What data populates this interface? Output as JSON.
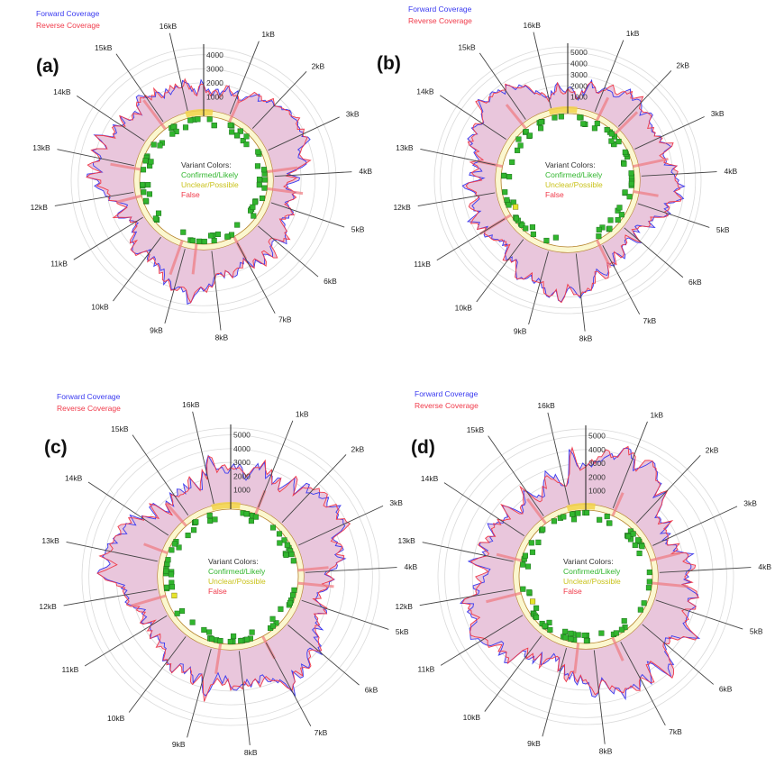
{
  "colors": {
    "forward": "#3a3af0",
    "reverse": "#f03a4a",
    "fill": "#e9c6dc",
    "ring_fill": "#fbf7cf",
    "ring_stroke": "#b5822a",
    "confirmed": "#31b62e",
    "unclear": "#e7e42c",
    "false": "#f07a80",
    "grid": "#dadada",
    "tick_line": "#444444"
  },
  "chart_data": [
    {
      "type": "circular-coverage",
      "panel_label": "(a)",
      "legend": {
        "forward": "Forward Coverage",
        "reverse": "Reverse Coverage"
      },
      "variant_legend": {
        "title": "Variant Colors:",
        "confirmed": "Confirmed/Likely",
        "unclear": "Unclear/Possible",
        "false": "False"
      },
      "position_labels": [
        "1kB",
        "2kB",
        "3kB",
        "4kB",
        "5kB",
        "6kB",
        "7kB",
        "8kB",
        "9kB",
        "10kB",
        "11kB",
        "12kB",
        "13kB",
        "14kB",
        "15kB",
        "16kB"
      ],
      "radial_ticks": [
        "1000",
        "2000",
        "3000",
        "4000"
      ],
      "rmax": 4500,
      "seed": 11,
      "unclear_variants_kb": [],
      "false_variants_kb": [
        1.1,
        3.8,
        4.5,
        7.0,
        8.6,
        9.2,
        11.8,
        12.9,
        14.9
      ]
    },
    {
      "type": "circular-coverage",
      "panel_label": "(b)",
      "legend": {
        "forward": "Forward Coverage",
        "reverse": "Reverse Coverage"
      },
      "variant_legend": {
        "title": "Variant Colors:",
        "confirmed": "Confirmed/Likely",
        "unclear": "Unclear/Possible",
        "false": "False"
      },
      "position_labels": [
        "1kB",
        "2kB",
        "3kB",
        "4kB",
        "5kB",
        "6kB",
        "7kB",
        "8kB",
        "9kB",
        "10kB",
        "11kB",
        "12kB",
        "13kB",
        "14kB",
        "15kB",
        "16kB"
      ],
      "radial_ticks": [
        "1000",
        "2000",
        "3000",
        "4000",
        "5000"
      ],
      "rmax": 5500,
      "seed": 23,
      "unclear_variants_kb": [
        11.2
      ],
      "false_variants_kb": [
        1.2,
        2.1,
        3.6,
        4.6,
        7.1,
        11.0,
        13.0,
        14.8
      ]
    },
    {
      "type": "circular-coverage",
      "panel_label": "(c)",
      "legend": {
        "forward": "Forward Coverage",
        "reverse": "Reverse Coverage"
      },
      "variant_legend": {
        "title": "Variant Colors:",
        "confirmed": "Confirmed/Likely",
        "unclear": "Unclear/Possible",
        "false": "False"
      },
      "position_labels": [
        "1kB",
        "2kB",
        "3kB",
        "4kB",
        "5kB",
        "6kB",
        "7kB",
        "8kB",
        "9kB",
        "10kB",
        "11kB",
        "12kB",
        "13kB",
        "14kB",
        "15kB",
        "16kB"
      ],
      "radial_ticks": [
        "1000",
        "2000",
        "3000",
        "4000",
        "5000"
      ],
      "rmax": 5500,
      "seed": 37,
      "unclear_variants_kb": [
        11.6
      ],
      "false_variants_kb": [
        1.0,
        3.9,
        4.4,
        7.0,
        8.7,
        11.7,
        13.4,
        14.7
      ]
    },
    {
      "type": "circular-coverage",
      "panel_label": "(d)",
      "legend": {
        "forward": "Forward Coverage",
        "reverse": "Reverse Coverage"
      },
      "variant_legend": {
        "title": "Variant Colors:",
        "confirmed": "Confirmed/Likely",
        "unclear": "Unclear/Possible",
        "false": "False"
      },
      "position_labels": [
        "1kB",
        "2kB",
        "3kB",
        "4kB",
        "5kB",
        "6kB",
        "7kB",
        "8kB",
        "9kB",
        "10kB",
        "11kB",
        "12kB",
        "13kB",
        "14kB",
        "15kB",
        "16kB"
      ],
      "radial_ticks": [
        "1000",
        "2000",
        "3000",
        "4000",
        "5000"
      ],
      "rmax": 5500,
      "seed": 51,
      "unclear_variants_kb": [
        11.3
      ],
      "false_variants_kb": [
        1.1,
        3.5,
        4.4,
        7.2,
        8.6,
        11.8,
        13.1,
        14.9
      ]
    }
  ]
}
